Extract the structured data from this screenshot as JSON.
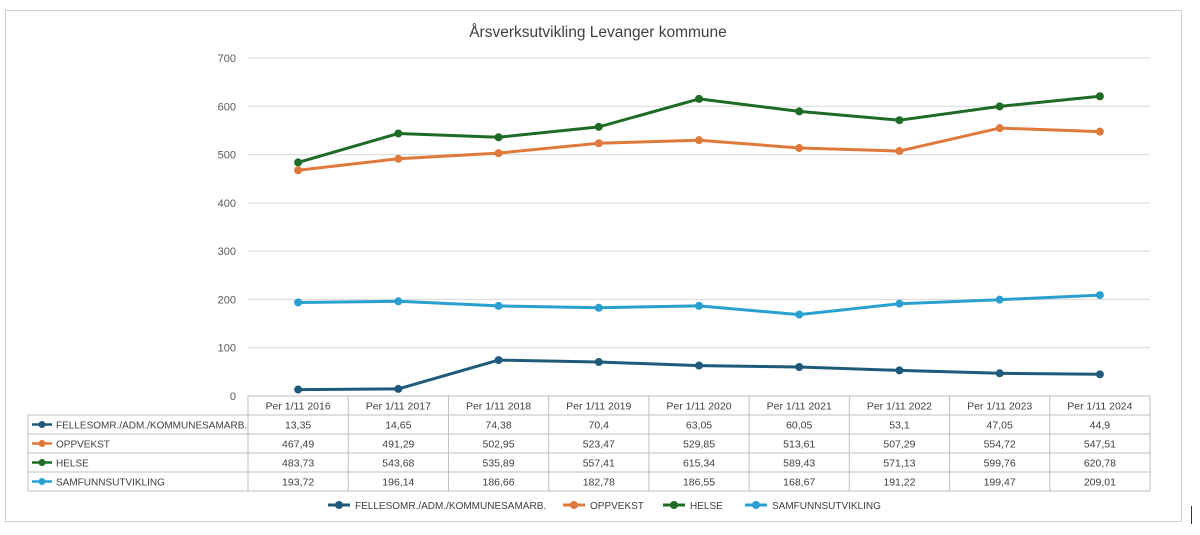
{
  "chart_data": {
    "type": "line",
    "title": "Årsverksutvikling Levanger kommune",
    "categories": [
      "Per 1/11 2016",
      "Per 1/11 2017",
      "Per 1/11 2018",
      "Per 1/11 2019",
      "Per 1/11 2020",
      "Per 1/11 2021",
      "Per 1/11 2022",
      "Per 1/11 2023",
      "Per 1/11 2024"
    ],
    "ylim": [
      0,
      700
    ],
    "yticks": [
      "0",
      "100",
      "200",
      "300",
      "400",
      "500",
      "600",
      "700"
    ],
    "grid": true,
    "legend_position": "bottom",
    "series": [
      {
        "name": "FELLESOMR./ADM./KOMMUNESAMARB.",
        "color": "#1f5a7a",
        "values": [
          13.35,
          14.65,
          74.38,
          70.4,
          63.05,
          60.05,
          53.1,
          47.05,
          44.9
        ],
        "labels": [
          "13,35",
          "14,65",
          "74,38",
          "70,4",
          "63,05",
          "60,05",
          "53,1",
          "47,05",
          "44,9"
        ]
      },
      {
        "name": "OPPVEKST",
        "color": "#e07a3c",
        "values": [
          467.49,
          491.29,
          502.95,
          523.47,
          529.85,
          513.61,
          507.29,
          554.72,
          547.51
        ],
        "labels": [
          "467,49",
          "491,29",
          "502,95",
          "523,47",
          "529,85",
          "513,61",
          "507,29",
          "554,72",
          "547,51"
        ]
      },
      {
        "name": "HELSE",
        "color": "#1e6b26",
        "values": [
          483.73,
          543.68,
          535.89,
          557.41,
          615.34,
          589.43,
          571.13,
          599.76,
          620.78
        ],
        "labels": [
          "483,73",
          "543,68",
          "535,89",
          "557,41",
          "615,34",
          "589,43",
          "571,13",
          "599,76",
          "620,78"
        ]
      },
      {
        "name": "SAMFUNNSUTVIKLING",
        "color": "#2aa0d0",
        "values": [
          193.72,
          196.14,
          186.66,
          182.78,
          186.55,
          168.67,
          191.22,
          199.47,
          209.01
        ],
        "labels": [
          "193,72",
          "196,14",
          "186,66",
          "182,78",
          "186,55",
          "168,67",
          "191,22",
          "199,47",
          "209,01"
        ]
      }
    ]
  }
}
